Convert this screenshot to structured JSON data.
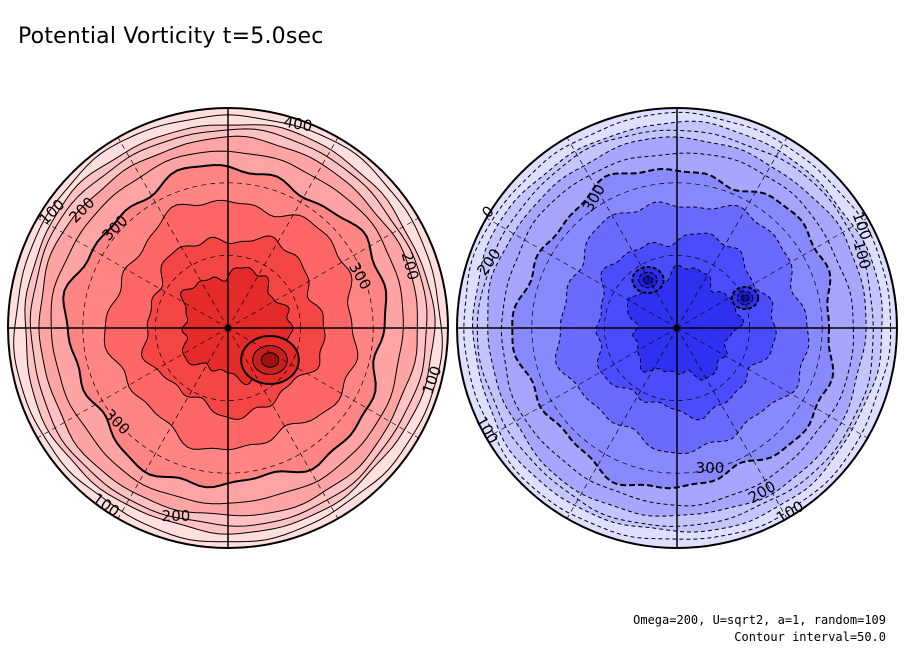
{
  "chart_data": {
    "type": "contour",
    "title": "Potential Vorticity t=5.0sec",
    "notes": [
      "Omega=200, U=sqrt2, a=1, random=109",
      "Contour interval=50.0"
    ],
    "contour_interval": 50.0,
    "panels": [
      {
        "name": "north-hemisphere",
        "sign": "positive",
        "palette": [
          "#ffdede",
          "#ffc2c2",
          "#ffa4a4",
          "#ff8585",
          "#ff6666",
          "#f64545",
          "#e52a2a"
        ],
        "labels": [
          "100",
          "200",
          "300",
          "300",
          "200",
          "100",
          "300",
          "100",
          "200",
          "400"
        ]
      },
      {
        "name": "south-hemisphere",
        "sign": "negative",
        "palette": [
          "#dedeff",
          "#c4c4ff",
          "#a6a6ff",
          "#8888ff",
          "#6a6aff",
          "#4c4cff",
          "#3030f0"
        ],
        "labels": [
          "0",
          "300",
          "200",
          "100",
          "100",
          "100",
          "300",
          "200",
          "100"
        ]
      }
    ]
  }
}
